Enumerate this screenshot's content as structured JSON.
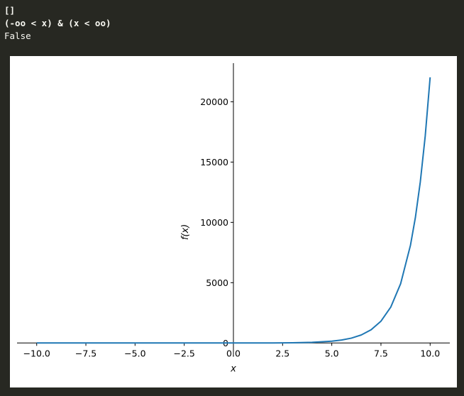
{
  "console": {
    "lines": [
      "[]",
      "(-oo < x) & (x < oo)",
      "False"
    ]
  },
  "chart_data": {
    "type": "line",
    "title": "",
    "xlabel": "x",
    "ylabel": "f(x)",
    "xlim": [
      -11.0,
      11.0
    ],
    "ylim": [
      -1100,
      23200
    ],
    "xticks": [
      -10.0,
      -7.5,
      -5.0,
      -2.5,
      0.0,
      2.5,
      5.0,
      7.5,
      10.0
    ],
    "xtick_labels": [
      "−10.0",
      "−7.5",
      "−5.0",
      "−2.5",
      "0.0",
      "2.5",
      "5.0",
      "7.5",
      "10.0"
    ],
    "yticks": [
      0,
      5000,
      10000,
      15000,
      20000
    ],
    "ytick_labels": [
      "0",
      "5000",
      "10000",
      "15000",
      "20000"
    ],
    "grid": false,
    "line_color": "#1f77b4",
    "series": [
      {
        "x": [
          -10,
          -8,
          -6,
          -4,
          -2,
          0,
          1,
          2,
          3,
          4,
          5,
          5.5,
          6,
          6.5,
          7,
          7.5,
          8,
          8.5,
          9,
          9.25,
          9.5,
          9.75,
          10
        ],
        "values": [
          0,
          0,
          0,
          0,
          0,
          1,
          3,
          7,
          20,
          55,
          148,
          245,
          403,
          665,
          1097,
          1808,
          2981,
          4915,
          8103,
          10405,
          13360,
          17154,
          22026
        ]
      }
    ]
  }
}
